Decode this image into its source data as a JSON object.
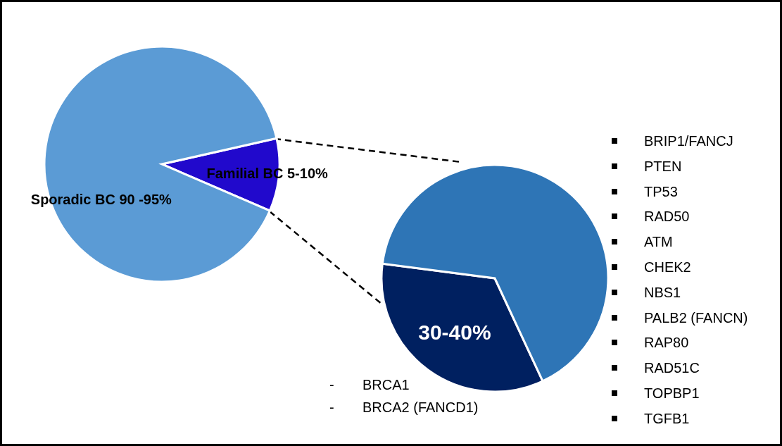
{
  "chart_data": [
    {
      "type": "pie",
      "categories": [
        "Familial BC 5-10%",
        "Sporadic BC 90 -95%"
      ],
      "values": [
        10,
        90
      ],
      "colors": [
        "#2109cc",
        "#5b9bd5"
      ],
      "legend": false
    },
    {
      "type": "pie",
      "categories": [
        "30-40%",
        null
      ],
      "values": [
        34,
        66
      ],
      "colors": [
        "#002060",
        "#2e75b6"
      ],
      "legend": false,
      "annotations": [
        "- BRCA1",
        "- BRCA2 (FANCD1)",
        "BRIP1/FANCJ",
        "PTEN",
        "TP53",
        "RAD50",
        "ATM",
        "CHEK2",
        "NBS1",
        "PALB2 (FANCN)",
        "RAP80",
        "RAD51C",
        "TOPBP1",
        "TGFB1"
      ]
    }
  ]
}
